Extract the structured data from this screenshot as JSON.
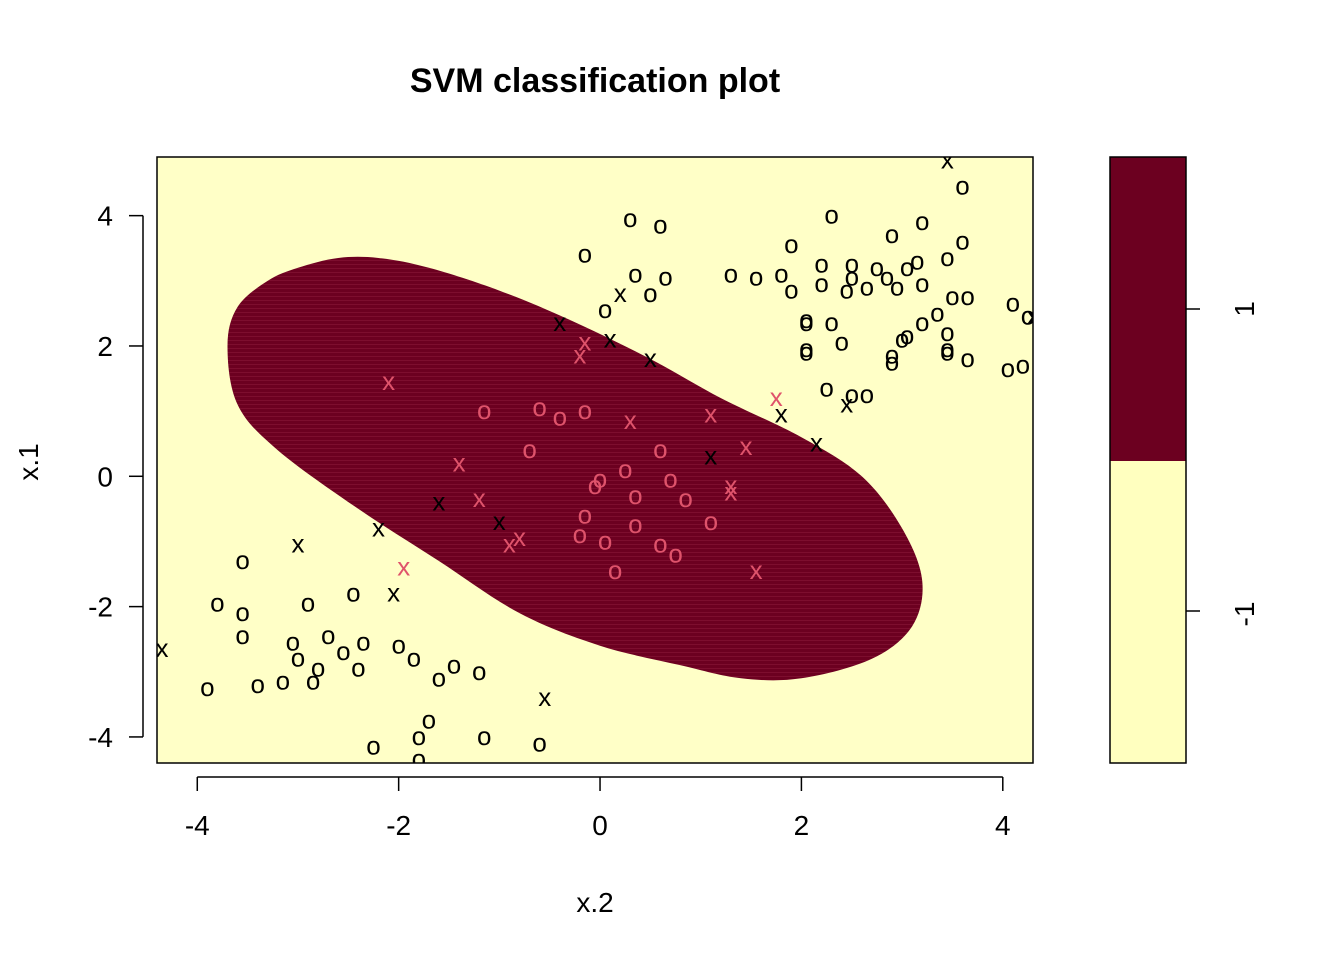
{
  "chart_data": {
    "type": "scatter",
    "title": "SVM classification plot",
    "xlabel": "x.2",
    "ylabel": "x.1",
    "xlim": [
      -4.4,
      4.3
    ],
    "ylim": [
      -4.4,
      4.9
    ],
    "x_ticks": [
      "-4",
      "-2",
      "0",
      "2",
      "4"
    ],
    "x_tick_values": [
      -4,
      -2,
      0,
      2,
      4
    ],
    "y_ticks": [
      "-4",
      "-2",
      "0",
      "2",
      "4"
    ],
    "y_tick_values": [
      -4,
      -2,
      0,
      2,
      4
    ],
    "colors": {
      "background": "#FFFFC7",
      "region_positive": "#6C0020",
      "region_negative": "#FFFFBF",
      "class_positive": "#DF536B",
      "class_negative": "#000000"
    },
    "decision_region": {
      "class": "1",
      "boundary": [
        [
          -3.7,
          2.0
        ],
        [
          -3.6,
          2.6
        ],
        [
          -3.3,
          3.0
        ],
        [
          -3.0,
          3.2
        ],
        [
          -2.6,
          3.35
        ],
        [
          -2.2,
          3.35
        ],
        [
          -1.7,
          3.2
        ],
        [
          -1.0,
          2.85
        ],
        [
          -0.3,
          2.4
        ],
        [
          0.5,
          1.8
        ],
        [
          1.2,
          1.2
        ],
        [
          2.0,
          0.6
        ],
        [
          2.6,
          0.0
        ],
        [
          3.0,
          -0.8
        ],
        [
          3.2,
          -1.6
        ],
        [
          3.1,
          -2.3
        ],
        [
          2.7,
          -2.8
        ],
        [
          2.0,
          -3.1
        ],
        [
          1.4,
          -3.1
        ],
        [
          0.8,
          -2.9
        ],
        [
          0.0,
          -2.6
        ],
        [
          -0.8,
          -2.1
        ],
        [
          -1.6,
          -1.3
        ],
        [
          -2.4,
          -0.5
        ],
        [
          -3.2,
          0.4
        ],
        [
          -3.6,
          1.1
        ]
      ]
    },
    "legend": {
      "levels": [
        "1",
        "-1"
      ],
      "colors": [
        "#6C0020",
        "#FFFFBF"
      ],
      "position": "right"
    },
    "series": [
      {
        "name": "support vectors",
        "marker": "x",
        "points": [
          {
            "x": 3.45,
            "y": 4.85,
            "cls": "-1"
          },
          {
            "x": 0.2,
            "y": 2.8,
            "cls": "-1"
          },
          {
            "x": -0.4,
            "y": 2.35,
            "cls": "-1"
          },
          {
            "x": 0.1,
            "y": 2.1,
            "cls": "-1"
          },
          {
            "x": 0.5,
            "y": 1.8,
            "cls": "-1"
          },
          {
            "x": -2.1,
            "y": 1.45,
            "cls": "1"
          },
          {
            "x": -0.15,
            "y": 2.05,
            "cls": "1"
          },
          {
            "x": -0.2,
            "y": 1.85,
            "cls": "1"
          },
          {
            "x": 1.75,
            "y": 1.2,
            "cls": "1"
          },
          {
            "x": 1.8,
            "y": 0.95,
            "cls": "-1"
          },
          {
            "x": 2.45,
            "y": 1.1,
            "cls": "-1"
          },
          {
            "x": 1.1,
            "y": 0.95,
            "cls": "1"
          },
          {
            "x": 0.3,
            "y": 0.85,
            "cls": "1"
          },
          {
            "x": 2.15,
            "y": 0.5,
            "cls": "-1"
          },
          {
            "x": 1.45,
            "y": 0.45,
            "cls": "1"
          },
          {
            "x": 1.1,
            "y": 0.3,
            "cls": "-1"
          },
          {
            "x": -1.4,
            "y": 0.2,
            "cls": "1"
          },
          {
            "x": 1.3,
            "y": -0.15,
            "cls": "1"
          },
          {
            "x": 1.3,
            "y": -0.25,
            "cls": "1"
          },
          {
            "x": -1.2,
            "y": -0.35,
            "cls": "1"
          },
          {
            "x": -1.6,
            "y": -0.4,
            "cls": "-1"
          },
          {
            "x": -1.0,
            "y": -0.7,
            "cls": "-1"
          },
          {
            "x": -2.2,
            "y": -0.8,
            "cls": "-1"
          },
          {
            "x": -0.8,
            "y": -0.95,
            "cls": "1"
          },
          {
            "x": -0.9,
            "y": -1.05,
            "cls": "1"
          },
          {
            "x": -3.0,
            "y": -1.05,
            "cls": "-1"
          },
          {
            "x": -1.95,
            "y": -1.4,
            "cls": "1"
          },
          {
            "x": 1.55,
            "y": -1.45,
            "cls": "1"
          },
          {
            "x": -2.05,
            "y": -1.8,
            "cls": "-1"
          },
          {
            "x": -4.35,
            "y": -2.65,
            "cls": "-1"
          },
          {
            "x": -0.55,
            "y": -3.4,
            "cls": "-1"
          },
          {
            "x": 4.3,
            "y": 2.45,
            "cls": "-1"
          }
        ]
      },
      {
        "name": "data points",
        "marker": "o",
        "points": [
          {
            "x": 3.6,
            "y": 4.45,
            "cls": "-1"
          },
          {
            "x": 0.3,
            "y": 3.95,
            "cls": "-1"
          },
          {
            "x": 0.6,
            "y": 3.85,
            "cls": "-1"
          },
          {
            "x": 2.3,
            "y": 4.0,
            "cls": "-1"
          },
          {
            "x": 3.2,
            "y": 3.9,
            "cls": "-1"
          },
          {
            "x": 2.9,
            "y": 3.7,
            "cls": "-1"
          },
          {
            "x": 1.9,
            "y": 3.55,
            "cls": "-1"
          },
          {
            "x": 3.6,
            "y": 3.6,
            "cls": "-1"
          },
          {
            "x": -0.15,
            "y": 3.4,
            "cls": "-1"
          },
          {
            "x": 3.45,
            "y": 3.35,
            "cls": "-1"
          },
          {
            "x": 2.2,
            "y": 3.25,
            "cls": "-1"
          },
          {
            "x": 2.5,
            "y": 3.25,
            "cls": "-1"
          },
          {
            "x": 3.15,
            "y": 3.3,
            "cls": "-1"
          },
          {
            "x": 0.35,
            "y": 3.1,
            "cls": "-1"
          },
          {
            "x": 0.65,
            "y": 3.05,
            "cls": "-1"
          },
          {
            "x": 1.3,
            "y": 3.1,
            "cls": "-1"
          },
          {
            "x": 1.55,
            "y": 3.05,
            "cls": "-1"
          },
          {
            "x": 1.8,
            "y": 3.1,
            "cls": "-1"
          },
          {
            "x": 2.75,
            "y": 3.2,
            "cls": "-1"
          },
          {
            "x": 3.05,
            "y": 3.2,
            "cls": "-1"
          },
          {
            "x": 2.2,
            "y": 2.95,
            "cls": "-1"
          },
          {
            "x": 2.5,
            "y": 3.05,
            "cls": "-1"
          },
          {
            "x": 2.85,
            "y": 3.05,
            "cls": "-1"
          },
          {
            "x": 3.2,
            "y": 2.95,
            "cls": "-1"
          },
          {
            "x": 0.5,
            "y": 2.8,
            "cls": "-1"
          },
          {
            "x": 1.9,
            "y": 2.85,
            "cls": "-1"
          },
          {
            "x": 2.45,
            "y": 2.85,
            "cls": "-1"
          },
          {
            "x": 2.65,
            "y": 2.9,
            "cls": "-1"
          },
          {
            "x": 2.95,
            "y": 2.9,
            "cls": "-1"
          },
          {
            "x": 3.5,
            "y": 2.75,
            "cls": "-1"
          },
          {
            "x": 3.65,
            "y": 2.75,
            "cls": "-1"
          },
          {
            "x": 4.1,
            "y": 2.65,
            "cls": "-1"
          },
          {
            "x": 0.05,
            "y": 2.55,
            "cls": "-1"
          },
          {
            "x": 2.05,
            "y": 2.35,
            "cls": "-1"
          },
          {
            "x": 2.3,
            "y": 2.35,
            "cls": "-1"
          },
          {
            "x": 3.2,
            "y": 2.35,
            "cls": "-1"
          },
          {
            "x": 3.35,
            "y": 2.5,
            "cls": "-1"
          },
          {
            "x": 3.45,
            "y": 2.2,
            "cls": "-1"
          },
          {
            "x": 2.05,
            "y": 2.4,
            "cls": "-1"
          },
          {
            "x": 3.0,
            "y": 2.1,
            "cls": "-1"
          },
          {
            "x": 3.05,
            "y": 2.15,
            "cls": "-1"
          },
          {
            "x": 2.4,
            "y": 2.05,
            "cls": "-1"
          },
          {
            "x": 2.05,
            "y": 1.9,
            "cls": "-1"
          },
          {
            "x": 2.9,
            "y": 1.85,
            "cls": "-1"
          },
          {
            "x": 3.45,
            "y": 1.9,
            "cls": "-1"
          },
          {
            "x": 2.9,
            "y": 1.75,
            "cls": "-1"
          },
          {
            "x": 3.45,
            "y": 1.95,
            "cls": "-1"
          },
          {
            "x": 3.65,
            "y": 1.8,
            "cls": "-1"
          },
          {
            "x": 4.05,
            "y": 1.65,
            "cls": "-1"
          },
          {
            "x": 4.2,
            "y": 1.7,
            "cls": "-1"
          },
          {
            "x": 2.25,
            "y": 1.35,
            "cls": "-1"
          },
          {
            "x": 2.5,
            "y": 1.25,
            "cls": "-1"
          },
          {
            "x": 2.65,
            "y": 1.25,
            "cls": "-1"
          },
          {
            "x": 2.05,
            "y": 1.95,
            "cls": "-1"
          },
          {
            "x": -1.15,
            "y": 1.0,
            "cls": "1"
          },
          {
            "x": -0.6,
            "y": 1.05,
            "cls": "1"
          },
          {
            "x": -0.4,
            "y": 0.9,
            "cls": "1"
          },
          {
            "x": -0.15,
            "y": 1.0,
            "cls": "1"
          },
          {
            "x": -0.7,
            "y": 0.4,
            "cls": "1"
          },
          {
            "x": 0.6,
            "y": 0.4,
            "cls": "1"
          },
          {
            "x": 0.25,
            "y": 0.1,
            "cls": "1"
          },
          {
            "x": 0.7,
            "y": -0.05,
            "cls": "1"
          },
          {
            "x": 0.0,
            "y": -0.05,
            "cls": "1"
          },
          {
            "x": -0.05,
            "y": -0.15,
            "cls": "1"
          },
          {
            "x": 0.35,
            "y": -0.3,
            "cls": "1"
          },
          {
            "x": 0.85,
            "y": -0.35,
            "cls": "1"
          },
          {
            "x": -0.15,
            "y": -0.6,
            "cls": "1"
          },
          {
            "x": 0.35,
            "y": -0.75,
            "cls": "1"
          },
          {
            "x": 1.1,
            "y": -0.7,
            "cls": "1"
          },
          {
            "x": -0.2,
            "y": -0.9,
            "cls": "1"
          },
          {
            "x": 0.05,
            "y": -1.0,
            "cls": "1"
          },
          {
            "x": 0.6,
            "y": -1.05,
            "cls": "1"
          },
          {
            "x": 0.75,
            "y": -1.2,
            "cls": "1"
          },
          {
            "x": 0.15,
            "y": -1.45,
            "cls": "1"
          },
          {
            "x": -3.55,
            "y": -1.3,
            "cls": "-1"
          },
          {
            "x": -3.8,
            "y": -1.95,
            "cls": "-1"
          },
          {
            "x": -3.55,
            "y": -2.1,
            "cls": "-1"
          },
          {
            "x": -2.9,
            "y": -1.95,
            "cls": "-1"
          },
          {
            "x": -2.45,
            "y": -1.8,
            "cls": "-1"
          },
          {
            "x": -3.55,
            "y": -2.45,
            "cls": "-1"
          },
          {
            "x": -3.05,
            "y": -2.55,
            "cls": "-1"
          },
          {
            "x": -2.7,
            "y": -2.45,
            "cls": "-1"
          },
          {
            "x": -2.35,
            "y": -2.55,
            "cls": "-1"
          },
          {
            "x": -2.0,
            "y": -2.6,
            "cls": "-1"
          },
          {
            "x": -2.55,
            "y": -2.7,
            "cls": "-1"
          },
          {
            "x": -3.0,
            "y": -2.8,
            "cls": "-1"
          },
          {
            "x": -1.85,
            "y": -2.8,
            "cls": "-1"
          },
          {
            "x": -2.4,
            "y": -2.95,
            "cls": "-1"
          },
          {
            "x": -2.8,
            "y": -2.95,
            "cls": "-1"
          },
          {
            "x": -1.45,
            "y": -2.9,
            "cls": "-1"
          },
          {
            "x": -1.2,
            "y": -3.0,
            "cls": "-1"
          },
          {
            "x": -1.6,
            "y": -3.1,
            "cls": "-1"
          },
          {
            "x": -2.85,
            "y": -3.15,
            "cls": "-1"
          },
          {
            "x": -3.15,
            "y": -3.15,
            "cls": "-1"
          },
          {
            "x": -3.4,
            "y": -3.2,
            "cls": "-1"
          },
          {
            "x": -3.9,
            "y": -3.25,
            "cls": "-1"
          },
          {
            "x": -1.7,
            "y": -3.75,
            "cls": "-1"
          },
          {
            "x": -1.8,
            "y": -4.0,
            "cls": "-1"
          },
          {
            "x": -1.15,
            "y": -4.0,
            "cls": "-1"
          },
          {
            "x": -2.25,
            "y": -4.15,
            "cls": "-1"
          },
          {
            "x": -0.6,
            "y": -4.1,
            "cls": "-1"
          },
          {
            "x": -1.8,
            "y": -4.35,
            "cls": "-1"
          },
          {
            "x": 4.25,
            "y": 2.45,
            "cls": "-1"
          }
        ]
      }
    ]
  }
}
